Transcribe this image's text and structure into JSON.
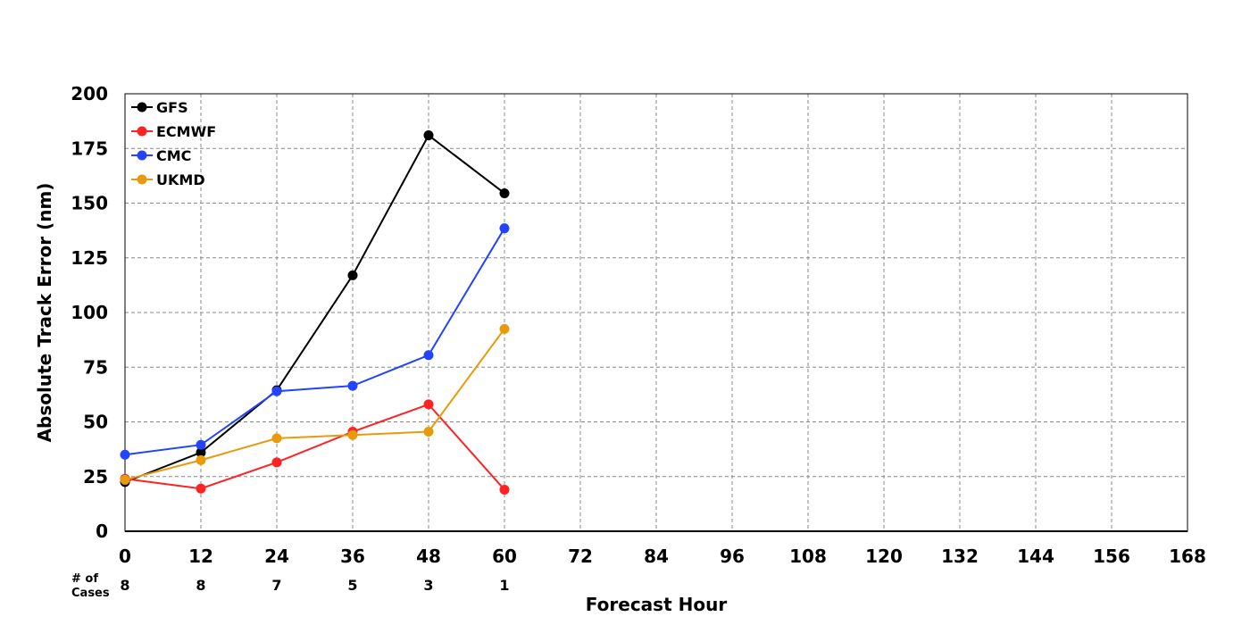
{
  "chart_data": {
    "type": "line",
    "title": "",
    "xlabel": "Forecast Hour",
    "ylabel": "Absolute Track Error (nm)",
    "xlim": [
      0,
      168
    ],
    "ylim": [
      0,
      200
    ],
    "x_ticks": [
      0,
      12,
      24,
      36,
      48,
      60,
      72,
      84,
      96,
      108,
      120,
      132,
      144,
      156,
      168
    ],
    "y_ticks": [
      0,
      25,
      50,
      75,
      100,
      125,
      150,
      175,
      200
    ],
    "grid": true,
    "legend_position": "top-left",
    "cases": {
      "label_line1": "# of",
      "label_line2": "Cases",
      "x": [
        0,
        12,
        24,
        36,
        48,
        60
      ],
      "counts": [
        "8",
        "8",
        "7",
        "5",
        "3",
        "1"
      ]
    },
    "x": [
      0,
      12,
      24,
      36,
      48,
      60
    ],
    "series": [
      {
        "name": "GFS",
        "color": "#000000",
        "values": [
          22.5,
          36,
          64.5,
          117,
          181,
          154.5
        ]
      },
      {
        "name": "ECMWF",
        "color": "#ff2222",
        "values": [
          24,
          19.5,
          31.5,
          45.5,
          58,
          19
        ]
      },
      {
        "name": "CMC",
        "color": "#2244ff",
        "values": [
          35,
          39.5,
          64,
          66.5,
          80.5,
          138.5
        ]
      },
      {
        "name": "UKMD",
        "color": "#e89a0c",
        "values": [
          23.5,
          32.5,
          42.5,
          44,
          45.5,
          92.5
        ]
      }
    ]
  }
}
